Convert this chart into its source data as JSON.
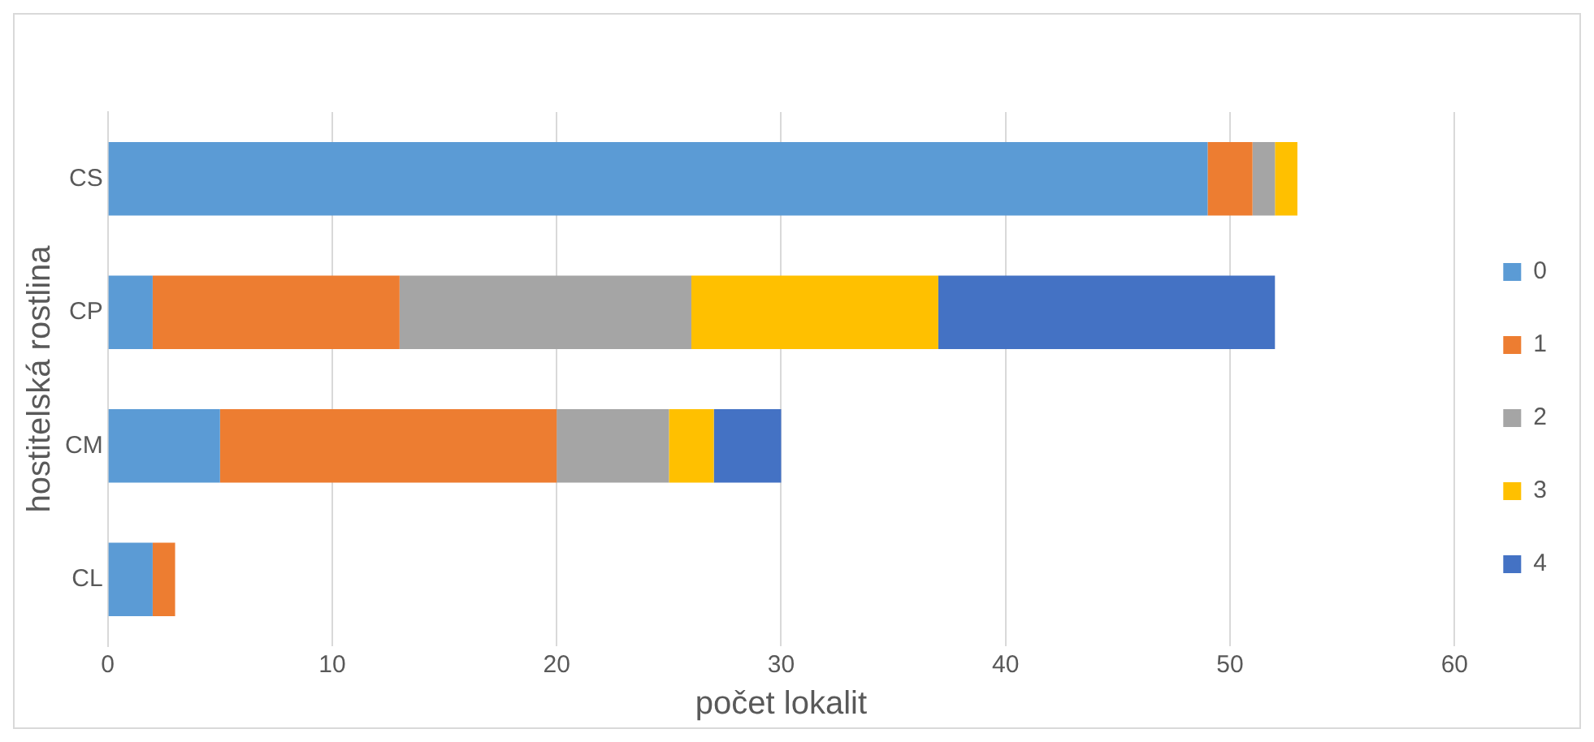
{
  "chart_data": {
    "type": "bar",
    "orientation": "horizontal",
    "stacked": true,
    "xlabel": "počet lokalit",
    "ylabel": "hostitelská rostlina",
    "categories": [
      "CS",
      "CP",
      "CM",
      "CL"
    ],
    "series": [
      {
        "name": "0",
        "color": "#5b9bd5",
        "values": [
          49,
          2,
          5,
          2
        ]
      },
      {
        "name": "1",
        "color": "#ed7d31",
        "values": [
          2,
          11,
          15,
          1
        ]
      },
      {
        "name": "2",
        "color": "#a5a5a5",
        "values": [
          1,
          13,
          5,
          0
        ]
      },
      {
        "name": "3",
        "color": "#ffc000",
        "values": [
          1,
          11,
          2,
          0
        ]
      },
      {
        "name": "4",
        "color": "#4472c4",
        "values": [
          0,
          15,
          3,
          0
        ]
      }
    ],
    "xlim": [
      0,
      60
    ],
    "xticks": [
      0,
      10,
      20,
      30,
      40,
      50,
      60
    ],
    "grid": "x",
    "legend": "right"
  }
}
